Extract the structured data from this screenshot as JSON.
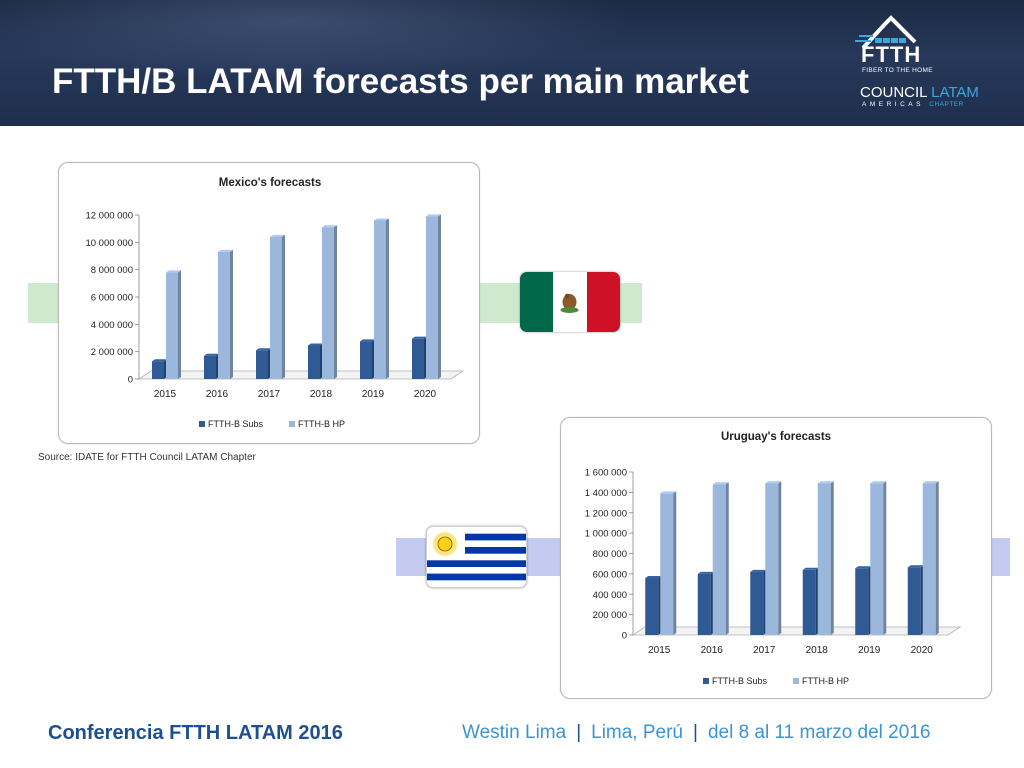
{
  "header": {
    "title": "FTTH/B LATAM forecasts per main market",
    "logo": {
      "main": "FTTH",
      "tagline": "FIBER TO THE HOME",
      "council": "COUNCIL",
      "latam": "LATAM",
      "americas": "AMERICAS",
      "chapter": "CHAPTER"
    }
  },
  "source_note": "Source: IDATE for FTTH Council LATAM Chapter",
  "footer": {
    "event": "Conferencia FTTH LATAM 2016",
    "venue": "Westin Lima",
    "city": "Lima, Perú",
    "dates": "del 8 al 11 marzo del 2016"
  },
  "colors": {
    "subs": "#2f5a93",
    "hp": "#9bb7dc",
    "mexico_flag": [
      "#006847",
      "#ffffff",
      "#ce1126"
    ],
    "uruguay_blue": "#0038a8",
    "uruguay_sun": "#fcd116"
  },
  "chart_data": [
    {
      "type": "bar",
      "title": "Mexico's forecasts",
      "categories": [
        "2015",
        "2016",
        "2017",
        "2018",
        "2019",
        "2020"
      ],
      "series": [
        {
          "name": "FTTH-B Subs",
          "values": [
            1300000,
            1700000,
            2100000,
            2450000,
            2750000,
            2950000
          ]
        },
        {
          "name": "FTTH-B HP",
          "values": [
            7800000,
            9300000,
            10400000,
            11100000,
            11600000,
            11900000
          ]
        }
      ],
      "ylim": [
        0,
        12000000
      ],
      "yticks": [
        "0",
        "2 000 000",
        "4 000 000",
        "6 000 000",
        "8 000 000",
        "10 000 000",
        "12 000 000"
      ],
      "legend": "bottom",
      "grid": false
    },
    {
      "type": "bar",
      "title": "Uruguay's forecasts",
      "categories": [
        "2015",
        "2016",
        "2017",
        "2018",
        "2019",
        "2020"
      ],
      "series": [
        {
          "name": "FTTH-B Subs",
          "values": [
            560000,
            600000,
            620000,
            640000,
            655000,
            665000
          ]
        },
        {
          "name": "FTTH-B HP",
          "values": [
            1390000,
            1480000,
            1490000,
            1490000,
            1490000,
            1490000
          ]
        }
      ],
      "ylim": [
        0,
        1600000
      ],
      "yticks": [
        "0",
        "200 000",
        "400 000",
        "600 000",
        "800 000",
        "1 000 000",
        "1 200 000",
        "1 400 000",
        "1 600 000"
      ],
      "legend": "bottom",
      "grid": false
    }
  ]
}
